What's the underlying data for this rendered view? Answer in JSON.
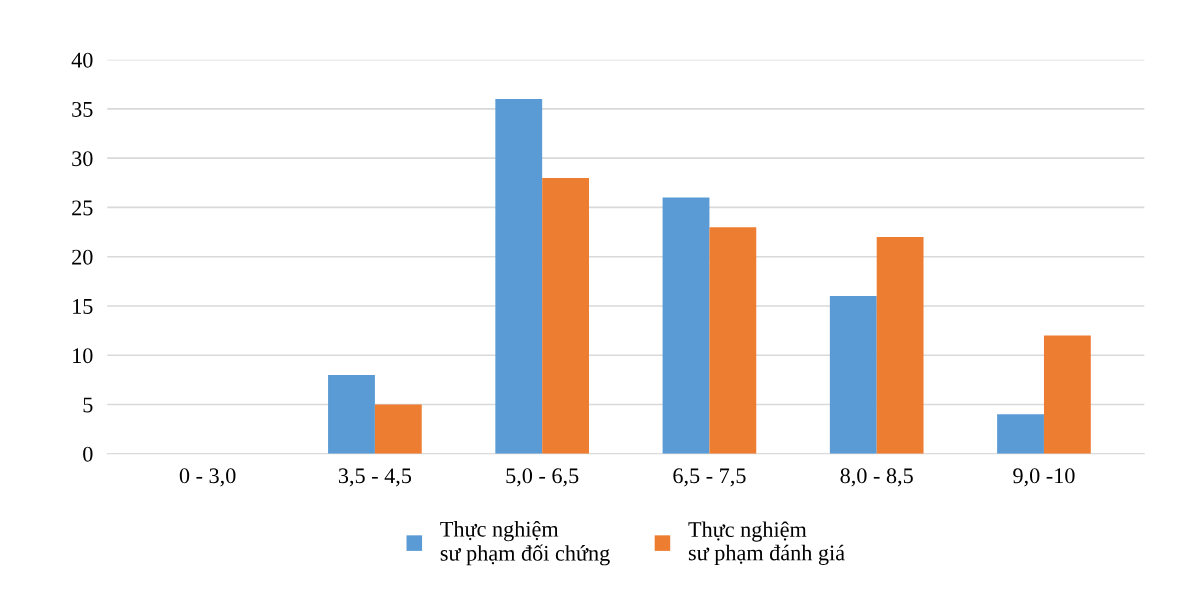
{
  "chart_data": {
    "type": "bar",
    "categories": [
      "0 - 3,0",
      "3,5 - 4,5",
      "5,0 - 6,5",
      "6,5 - 7,5",
      "8,0 - 8,5",
      "9,0 -10"
    ],
    "series": [
      {
        "name": "Thực nghiệm\nsư phạm đối chứng",
        "color": "#5b9bd5",
        "values": [
          0,
          8,
          36,
          26,
          16,
          4
        ]
      },
      {
        "name": "Thực nghiệm\nsư phạm đánh giá",
        "color": "#ed7d31",
        "values": [
          0,
          5,
          28,
          23,
          22,
          12
        ]
      }
    ],
    "ylim": [
      0,
      40
    ],
    "yticks": [
      0,
      5,
      10,
      15,
      20,
      25,
      30,
      35,
      40
    ],
    "grid": "y",
    "legend": "bottom"
  }
}
